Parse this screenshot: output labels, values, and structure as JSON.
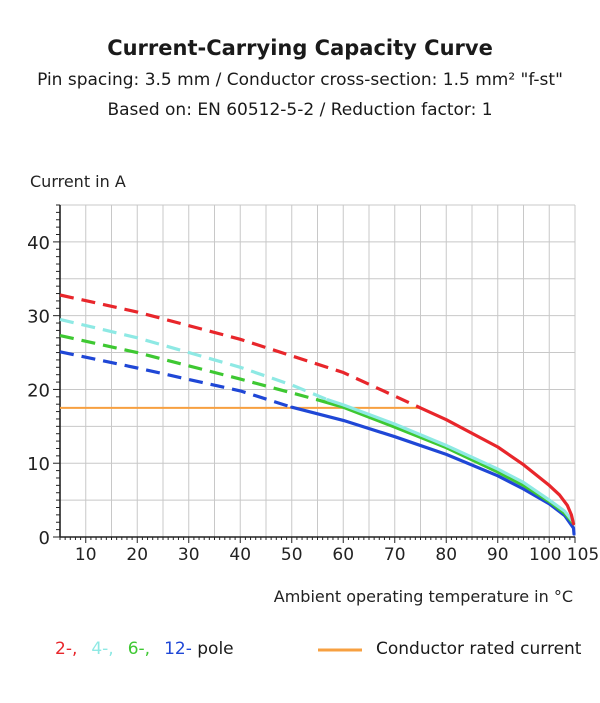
{
  "title": "Current-Carrying Capacity Curve",
  "subtitle_1": "Pin spacing: 3.5 mm / Conductor cross-section: 1.5 mm² \"f-st\"",
  "subtitle_2": "Based on: EN 60512-5-2 / Reduction factor: 1",
  "chart_data": {
    "type": "line",
    "title": "Current-Carrying Capacity Curve",
    "ylabel": "Current in A",
    "xlabel": "Ambient operating temperature in °C",
    "xlim": [
      5,
      105
    ],
    "ylim": [
      0,
      45
    ],
    "x_ticks": [
      10,
      20,
      30,
      40,
      50,
      60,
      70,
      80,
      90,
      100,
      105
    ],
    "y_ticks": [
      0,
      10,
      20,
      30,
      40
    ],
    "grid": true,
    "series": [
      {
        "name": "2-",
        "color": "#e8262b",
        "dashed_points": [
          [
            5,
            32.8
          ],
          [
            20,
            30.5
          ],
          [
            40,
            26.8
          ],
          [
            60,
            22.3
          ],
          [
            75,
            17.5
          ]
        ],
        "solid_points": [
          [
            75,
            17.5
          ],
          [
            80,
            15.9
          ],
          [
            90,
            12.2
          ],
          [
            95,
            9.8
          ],
          [
            100,
            7.0
          ],
          [
            102,
            5.7
          ],
          [
            103.5,
            4.3
          ],
          [
            104.3,
            3.0
          ],
          [
            104.7,
            1.8
          ]
        ]
      },
      {
        "name": "4-",
        "color": "#8ee9e4",
        "dashed_points": [
          [
            5,
            29.5
          ],
          [
            20,
            27.0
          ],
          [
            40,
            23.0
          ],
          [
            50,
            20.6
          ],
          [
            57,
            18.6
          ]
        ],
        "solid_points": [
          [
            57,
            18.6
          ],
          [
            60,
            17.9
          ],
          [
            70,
            15.3
          ],
          [
            80,
            12.4
          ],
          [
            90,
            9.2
          ],
          [
            95,
            7.4
          ],
          [
            100,
            5.0
          ],
          [
            103,
            3.5
          ],
          [
            104.7,
            2.0
          ]
        ]
      },
      {
        "name": "6-",
        "color": "#3ec832",
        "dashed_points": [
          [
            5,
            27.3
          ],
          [
            20,
            25.0
          ],
          [
            40,
            21.4
          ],
          [
            55,
            18.6
          ]
        ],
        "solid_points": [
          [
            55,
            18.6
          ],
          [
            60,
            17.6
          ],
          [
            70,
            14.9
          ],
          [
            80,
            12.1
          ],
          [
            90,
            8.8
          ],
          [
            95,
            7.0
          ],
          [
            100,
            4.8
          ],
          [
            103,
            3.2
          ],
          [
            104.7,
            1.8
          ]
        ]
      },
      {
        "name": "12-pole",
        "color": "#1f47d6",
        "dashed_points": [
          [
            5,
            25.1
          ],
          [
            20,
            22.9
          ],
          [
            40,
            19.8
          ],
          [
            50,
            17.6
          ]
        ],
        "solid_points": [
          [
            50,
            17.6
          ],
          [
            60,
            15.8
          ],
          [
            70,
            13.6
          ],
          [
            80,
            11.2
          ],
          [
            90,
            8.3
          ],
          [
            95,
            6.5
          ],
          [
            100,
            4.5
          ],
          [
            103,
            2.9
          ],
          [
            104.7,
            1.2
          ],
          [
            104.8,
            0.4
          ]
        ]
      }
    ],
    "rated_current": {
      "name": "Conductor rated current",
      "color": "#f7a041",
      "value": 17.5,
      "x_range": [
        5,
        75
      ]
    }
  },
  "legend": {
    "pole_items": [
      {
        "label": "2-,",
        "color": "#e8262b"
      },
      {
        "label": "4-,",
        "color": "#8ee9e4"
      },
      {
        "label": "6-,",
        "color": "#3ec832"
      },
      {
        "label": "12-",
        "color": "#1f47d6"
      }
    ],
    "pole_suffix": "pole",
    "rated_label": "Conductor rated current",
    "rated_color": "#f7a041"
  }
}
